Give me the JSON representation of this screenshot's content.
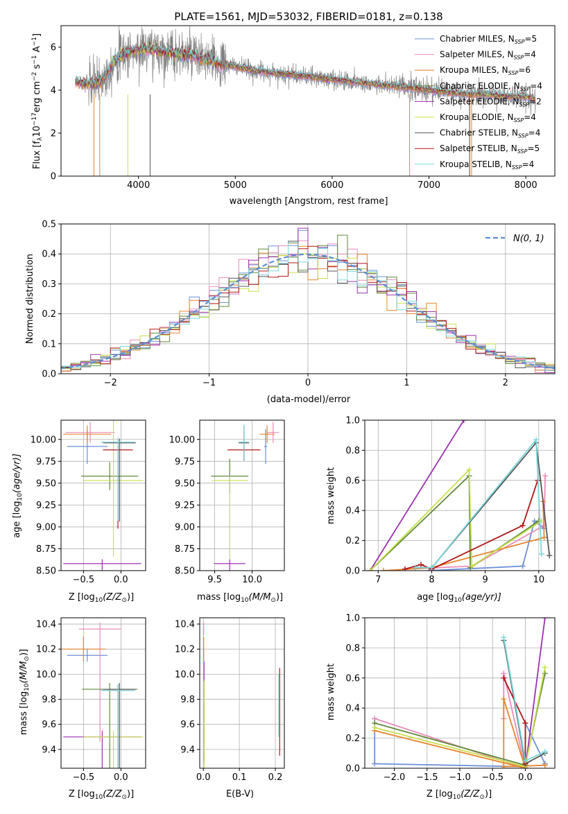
{
  "figure": {
    "title": "PLATE=1561, MJD=53032, FIBERID=0181, z=0.138",
    "colors": {
      "Chabrier MILES": "#6a8fd8",
      "Salpeter MILES": "#e88bb8",
      "Kroupa MILES": "#e8842a",
      "Chabrier ELODIE": "#5f8a3a",
      "Salpeter ELODIE": "#9b30b0",
      "Kroupa ELODIE": "#c8e04a",
      "Chabrier STELIB": "#555555",
      "Salpeter STELIB": "#b01515",
      "Kroupa STELIB": "#7ad7dc"
    }
  },
  "chart_data": [
    {
      "id": "spectrum",
      "type": "line",
      "xlabel": "wavelength [Angstrom, rest frame]",
      "ylabel": "Flux [f",
      "ylabel_sub": "λ",
      "ylabel_rest": "10",
      "ylabel_sup": "−17",
      "ylabel_units": "erg cm",
      "xlim": [
        3200,
        8300
      ],
      "ylim": [
        0,
        7
      ],
      "xticks": [
        4000,
        5000,
        6000,
        7000,
        8000
      ],
      "yticks": [
        0,
        2,
        4,
        6
      ],
      "legend_position": "upper-right",
      "data_color": "#808080",
      "data_x": [
        3350,
        3450,
        3550,
        3650,
        3750,
        3850,
        3950,
        4050,
        4150,
        4250,
        4400,
        4550,
        4700,
        4850,
        5000,
        5200,
        5400,
        5600,
        5800,
        6000,
        6200,
        6400,
        6600,
        6800,
        7000,
        7200,
        7400,
        7600,
        7800,
        8000,
        8100
      ],
      "data_y": [
        4.4,
        4.3,
        4.3,
        4.6,
        5.4,
        5.7,
        5.8,
        5.9,
        5.9,
        5.8,
        5.7,
        5.6,
        5.4,
        5.2,
        5.1,
        4.9,
        4.8,
        4.7,
        4.6,
        4.5,
        4.4,
        4.3,
        4.2,
        4.1,
        4.0,
        3.9,
        3.8,
        3.8,
        3.7,
        3.7,
        3.6
      ],
      "legend": [
        {
          "name": "Chabrier MILES",
          "nssp": "=5"
        },
        {
          "name": "Salpeter MILES",
          "nssp": "=4"
        },
        {
          "name": "Kroupa MILES",
          "nssp": "=6"
        },
        {
          "name": "Chabrier ELODIE",
          "nssp": "=4"
        },
        {
          "name": "Salpeter ELODIE",
          "nssp": "=2"
        },
        {
          "name": "Kroupa ELODIE",
          "nssp": "=4"
        },
        {
          "name": "Chabrier STELIB",
          "nssp": "=4"
        },
        {
          "name": "Salpeter STELIB",
          "nssp": "=5"
        },
        {
          "name": "Kroupa STELIB",
          "nssp": "=4"
        }
      ]
    },
    {
      "id": "residuals",
      "type": "histogram",
      "xlabel": "(data-model)/error",
      "ylabel": "Normed distribution",
      "xlim": [
        -2.5,
        2.5
      ],
      "ylim": [
        0,
        0.5
      ],
      "xticks": [
        -2,
        -1,
        0,
        1,
        2
      ],
      "yticks": [
        0.0,
        0.1,
        0.2,
        0.3,
        0.4,
        0.5
      ],
      "grid": true,
      "bin_width": 0.1,
      "legend_label": "N(0, 1)",
      "legend_position": "upper-right",
      "gaussian": {
        "mu": 0,
        "sigma": 1
      }
    },
    {
      "id": "age-z",
      "type": "errorbar",
      "xlabel": "Z [log",
      "xlabel_tail": "(Z/Z",
      "ylabel": "age  [log",
      "ylabel_tail": "(age/yr)]",
      "xlim": [
        -0.8,
        0.33
      ],
      "ylim": [
        8.5,
        10.22
      ],
      "xticks": [
        -0.5,
        0.0
      ],
      "yticks": [
        8.5,
        8.75,
        9.0,
        9.25,
        9.5,
        9.75,
        10.0
      ],
      "grid": true,
      "points": [
        {
          "series": "Chabrier MILES",
          "x": -0.45,
          "xerr": 0.27,
          "y": 9.92,
          "yerr": 0.2
        },
        {
          "series": "Salpeter MILES",
          "x": -0.41,
          "xerr": 0.33,
          "y": 10.08,
          "yerr": 0.12
        },
        {
          "series": "Kroupa MILES",
          "x": -0.45,
          "xerr": 0.32,
          "y": 10.06,
          "yerr": 0.1
        },
        {
          "series": "Chabrier ELODIE",
          "x": -0.15,
          "xerr": 0.38,
          "y": 9.58,
          "yerr": 0.16
        },
        {
          "series": "Salpeter ELODIE",
          "x": -0.25,
          "xerr": 0.52,
          "y": 8.58,
          "yerr": 0.0
        },
        {
          "series": "Kroupa ELODIE",
          "x": -0.1,
          "xerr": 0.4,
          "y": 9.53,
          "yerr": 0.87
        },
        {
          "series": "Chabrier STELIB",
          "x": -0.02,
          "xerr": 0.22,
          "y": 9.96,
          "yerr": 0.0
        },
        {
          "series": "Salpeter STELIB",
          "x": -0.04,
          "xerr": 0.2,
          "y": 9.88,
          "yerr": 0.0
        },
        {
          "series": "Kroupa STELIB",
          "x": -0.04,
          "xerr": 0.23,
          "y": 9.97,
          "yerr": 0.0
        }
      ]
    },
    {
      "id": "age-mass",
      "type": "errorbar",
      "xlabel": "mass [log",
      "xlabel_tail": "(M/M",
      "xlim": [
        9.3,
        10.43
      ],
      "ylim": [
        8.5,
        10.22
      ],
      "xticks": [
        9.5,
        10.0
      ],
      "yticks": [
        8.5,
        8.75,
        9.0,
        9.25,
        9.5,
        9.75,
        10.0
      ],
      "grid": true,
      "points": [
        {
          "series": "Chabrier MILES",
          "x": 10.18,
          "xerr": 0.02,
          "y": 9.92,
          "yerr": 0.2
        },
        {
          "series": "Salpeter MILES",
          "x": 10.28,
          "xerr": 0.08,
          "y": 10.08,
          "yerr": 0.12
        },
        {
          "series": "Kroupa MILES",
          "x": 10.2,
          "xerr": 0.1,
          "y": 10.06,
          "yerr": 0.1
        },
        {
          "series": "Chabrier ELODIE",
          "x": 9.7,
          "xerr": 0.25,
          "y": 9.58,
          "yerr": 0.2
        },
        {
          "series": "Salpeter ELODIE",
          "x": 9.7,
          "xerr": 0.21,
          "y": 8.58,
          "yerr": 0.0
        },
        {
          "series": "Kroupa ELODIE",
          "x": 9.7,
          "xerr": 0.24,
          "y": 9.53,
          "yerr": 0.0
        },
        {
          "series": "Chabrier STELIB",
          "x": 9.89,
          "xerr": 0.07,
          "y": 9.96,
          "yerr": 0.2
        },
        {
          "series": "Salpeter STELIB",
          "x": 9.89,
          "xerr": 0.22,
          "y": 9.88,
          "yerr": 0.1
        },
        {
          "series": "Kroupa STELIB",
          "x": 9.89,
          "xerr": 0.07,
          "y": 9.97,
          "yerr": 0.2
        }
      ]
    },
    {
      "id": "mass-z",
      "type": "errorbar",
      "xlabel": "Z [log",
      "xlabel_tail": "(Z/Z",
      "ylabel": "mass [log",
      "ylabel_tail": "(M/M",
      "xlim": [
        -0.8,
        0.33
      ],
      "ylim": [
        9.25,
        10.45
      ],
      "xticks": [
        -0.5,
        0.0
      ],
      "yticks": [
        9.4,
        9.6,
        9.8,
        10.0,
        10.2,
        10.4
      ],
      "grid": true,
      "points": [
        {
          "series": "Chabrier MILES",
          "x": -0.45,
          "xerr": 0.27,
          "y": 10.15,
          "yerr": 0.05
        },
        {
          "series": "Salpeter MILES",
          "x": -0.28,
          "xerr": 0.28,
          "y": 10.36,
          "yerr": 0.0
        },
        {
          "series": "Kroupa MILES",
          "x": -0.5,
          "xerr": 0.3,
          "y": 10.2,
          "yerr": 0.1
        },
        {
          "series": "Chabrier ELODIE",
          "x": -0.15,
          "xerr": 0.37,
          "y": 9.88,
          "yerr": 0.0
        },
        {
          "series": "Salpeter ELODIE",
          "x": -0.25,
          "xerr": 0.52,
          "y": 9.5,
          "yerr": 0.0
        },
        {
          "series": "Kroupa ELODIE",
          "x": -0.1,
          "xerr": 0.4,
          "y": 9.5,
          "yerr": 0.0
        },
        {
          "series": "Chabrier STELIB",
          "x": -0.02,
          "xerr": 0.22,
          "y": 9.88,
          "yerr": 0.0
        },
        {
          "series": "Salpeter STELIB",
          "x": -0.04,
          "xerr": 0.2,
          "y": 9.87,
          "yerr": 0.0
        },
        {
          "series": "Kroupa STELIB",
          "x": -0.04,
          "xerr": 0.23,
          "y": 9.87,
          "yerr": 0.0
        }
      ]
    },
    {
      "id": "mass-ebv",
      "type": "errorbar",
      "xlabel": "E(B-V)",
      "xlim": [
        -0.01,
        0.225
      ],
      "ylim": [
        9.25,
        10.45
      ],
      "xticks": [
        0.0,
        0.1,
        0.2
      ],
      "yticks": [
        9.4,
        9.6,
        9.8,
        10.0,
        10.2,
        10.4
      ],
      "grid": true,
      "points": [
        {
          "series": "Chabrier MILES",
          "x": 0.001,
          "xerr": 0.0,
          "y": 10.15,
          "yerr": 0.05
        },
        {
          "series": "Salpeter MILES",
          "x": 0.001,
          "xerr": 0.0,
          "y": 10.36,
          "yerr": 0.05
        },
        {
          "series": "Kroupa MILES",
          "x": 0.001,
          "xerr": 0.0,
          "y": 10.2,
          "yerr": 0.1
        },
        {
          "series": "Chabrier ELODIE",
          "x": 0.002,
          "xerr": 0.0,
          "y": 9.6,
          "yerr": 0.3
        },
        {
          "series": "Salpeter ELODIE",
          "x": 0.002,
          "xerr": 0.0,
          "y": 10.0,
          "yerr": 0.1
        },
        {
          "series": "Kroupa ELODIE",
          "x": 0.002,
          "xerr": 0.0,
          "y": 9.6,
          "yerr": 0.35
        },
        {
          "series": "Chabrier STELIB",
          "x": 0.21,
          "xerr": 0.0,
          "y": 9.75,
          "yerr": 0.25
        },
        {
          "series": "Salpeter STELIB",
          "x": 0.212,
          "xerr": 0.0,
          "y": 9.7,
          "yerr": 0.35
        },
        {
          "series": "Kroupa STELIB",
          "x": 0.21,
          "xerr": 0.0,
          "y": 9.75,
          "yerr": 0.25
        }
      ]
    },
    {
      "id": "weight-age",
      "type": "line",
      "xlabel": "age  [log",
      "xlabel_tail": "(age/yr)]",
      "ylabel": "mass weight",
      "xlim": [
        6.75,
        10.3
      ],
      "ylim": [
        0,
        1
      ],
      "xticks": [
        7,
        8,
        9,
        10
      ],
      "yticks": [
        0.0,
        0.2,
        0.4,
        0.6,
        0.8,
        1.0
      ],
      "grid": true,
      "series": [
        {
          "name": "Chabrier MILES",
          "x": [
            7.95,
            9.7,
            9.92,
            10.1
          ],
          "y": [
            0.0,
            0.03,
            0.33,
            0.28
          ]
        },
        {
          "name": "Salpeter MILES",
          "x": [
            7.5,
            8.75,
            10.1,
            10.12
          ],
          "y": [
            0.01,
            0.03,
            0.3,
            0.63
          ]
        },
        {
          "name": "Kroupa MILES",
          "x": [
            7.1,
            8.0,
            10.1,
            10.08
          ],
          "y": [
            0.0,
            0.02,
            0.22,
            0.46
          ]
        },
        {
          "name": "Chabrier ELODIE",
          "x": [
            6.85,
            8.7,
            8.72,
            10.0
          ],
          "y": [
            0.0,
            0.63,
            0.02,
            0.33
          ]
        },
        {
          "name": "Salpeter ELODIE",
          "x": [
            6.85,
            8.6
          ],
          "y": [
            0.0,
            1.0
          ]
        },
        {
          "name": "Kroupa ELODIE",
          "x": [
            6.85,
            8.7,
            8.75,
            10.05
          ],
          "y": [
            0.0,
            0.67,
            0.03,
            0.33
          ]
        },
        {
          "name": "Chabrier STELIB",
          "x": [
            7.7,
            8.0,
            9.95,
            10.2
          ],
          "y": [
            0.02,
            0.02,
            0.85,
            0.1
          ]
        },
        {
          "name": "Salpeter STELIB",
          "x": [
            7.5,
            7.8,
            8.0,
            9.7,
            9.98
          ],
          "y": [
            0.01,
            0.04,
            0.01,
            0.3,
            0.6
          ]
        },
        {
          "name": "Kroupa STELIB",
          "x": [
            7.7,
            8.0,
            9.95,
            10.05
          ],
          "y": [
            0.02,
            0.02,
            0.87,
            0.11
          ]
        }
      ]
    },
    {
      "id": "weight-z",
      "type": "line",
      "xlabel": "Z [log",
      "xlabel_tail": "(Z/Z",
      "ylabel": "mass weight",
      "xlim": [
        -2.45,
        0.45
      ],
      "ylim": [
        0,
        1
      ],
      "xticks": [
        -2.0,
        -1.5,
        -1.0,
        -0.5,
        0.0
      ],
      "yticks": [
        0.0,
        0.2,
        0.4,
        0.6,
        0.8,
        1.0
      ],
      "grid": true,
      "series": [
        {
          "name": "Chabrier MILES",
          "x": [
            -2.3,
            -2.3,
            -0.0,
            0.0,
            0.3
          ],
          "y": [
            0.33,
            0.03,
            0.01,
            0.3,
            0.03
          ]
        },
        {
          "name": "Salpeter MILES",
          "x": [
            -2.3,
            -0.0,
            -0.33,
            -0.33
          ],
          "y": [
            0.33,
            0.0,
            0.63,
            0.33
          ]
        },
        {
          "name": "Kroupa MILES",
          "x": [
            -2.3,
            -0.0,
            -0.33,
            -0.33,
            0.3
          ],
          "y": [
            0.25,
            0.0,
            0.46,
            0.01,
            0.02
          ]
        },
        {
          "name": "Chabrier ELODIE",
          "x": [
            -2.3,
            -0.0,
            0.3
          ],
          "y": [
            0.3,
            0.02,
            0.63
          ]
        },
        {
          "name": "Salpeter ELODIE",
          "x": [
            0.0,
            0.3
          ],
          "y": [
            0.0,
            1.0
          ]
        },
        {
          "name": "Kroupa ELODIE",
          "x": [
            -2.3,
            -0.0,
            0.3
          ],
          "y": [
            0.27,
            0.01,
            0.67
          ]
        },
        {
          "name": "Chabrier STELIB",
          "x": [
            -0.33,
            0.0,
            0.3
          ],
          "y": [
            0.85,
            0.03,
            0.1
          ]
        },
        {
          "name": "Salpeter STELIB",
          "x": [
            -0.33,
            0.0,
            0.0
          ],
          "y": [
            0.6,
            0.3,
            0.03
          ]
        },
        {
          "name": "Kroupa STELIB",
          "x": [
            -0.33,
            0.0,
            0.3
          ],
          "y": [
            0.87,
            0.05,
            0.11
          ]
        }
      ]
    }
  ]
}
